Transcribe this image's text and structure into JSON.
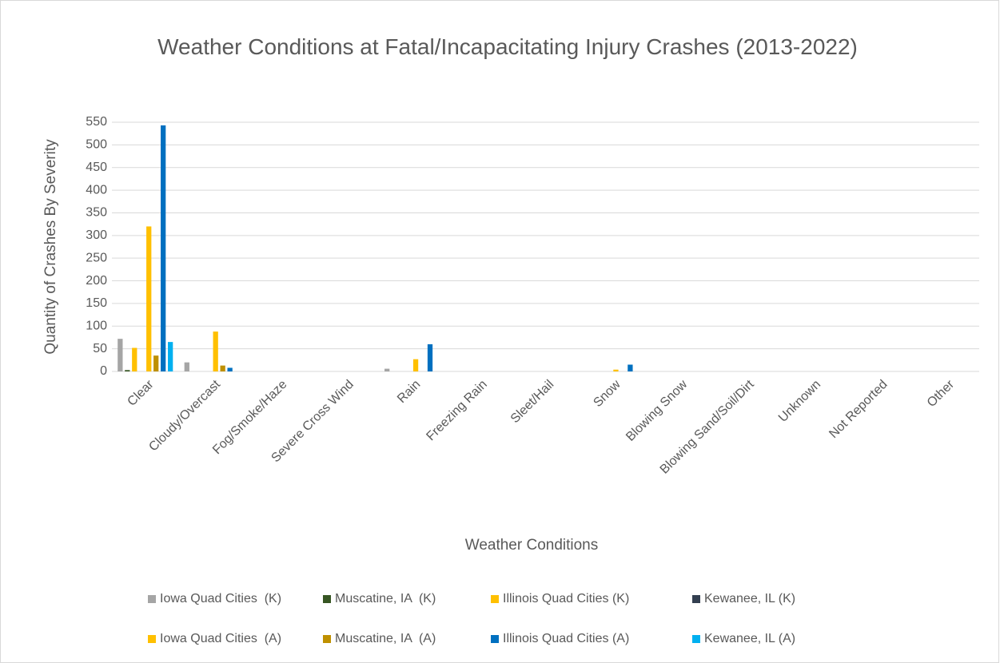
{
  "chart_data": {
    "type": "bar",
    "title": "Weather Conditions at Fatal/Incapacitating Injury Crashes (2013-2022)",
    "x_label": "Weather Conditions",
    "y_label": "Quantity of Crashes By Severity",
    "categories": [
      "Clear",
      "Cloudy/Overcast",
      "Fog/Smoke/Haze",
      "Severe Cross Wind",
      "Rain",
      "Freezing Rain",
      "Sleet/Hail",
      "Snow",
      "Blowing Snow",
      "Blowing Sand/Soil/Dirt",
      "Unknown",
      "Not Reported",
      "Other"
    ],
    "series": [
      {
        "name": "Iowa Quad Cities  (K)",
        "color": "#a5a5a5",
        "values": [
          72,
          20,
          0,
          0,
          6,
          0,
          0,
          0,
          0,
          0,
          0,
          0,
          0
        ]
      },
      {
        "name": "Muscatine, IA  (K)",
        "color": "#375623",
        "values": [
          3,
          0,
          0,
          0,
          0,
          0,
          0,
          0,
          0,
          0,
          0,
          0,
          0
        ]
      },
      {
        "name": "Illinois Quad Cities (K)",
        "color": "#ffc000",
        "values": [
          52,
          0,
          0,
          0,
          0,
          0,
          0,
          0,
          0,
          0,
          0,
          0,
          0
        ]
      },
      {
        "name": "Kewanee, IL (K)",
        "color": "#333f50",
        "values": [
          0,
          0,
          0,
          0,
          0,
          0,
          0,
          0,
          0,
          0,
          0,
          0,
          0
        ]
      },
      {
        "name": "Iowa Quad Cities  (A)",
        "color": "#ffc000",
        "values": [
          320,
          88,
          0,
          0,
          27,
          0,
          0,
          4,
          0,
          0,
          0,
          0,
          0
        ]
      },
      {
        "name": "Muscatine, IA  (A)",
        "color": "#bf9000",
        "values": [
          35,
          13,
          0,
          0,
          0,
          0,
          0,
          0,
          0,
          0,
          0,
          0,
          0
        ]
      },
      {
        "name": "Illinois Quad Cities (A)",
        "color": "#0070c0",
        "values": [
          543,
          8,
          0,
          0,
          60,
          0,
          0,
          15,
          0,
          0,
          0,
          0,
          0
        ]
      },
      {
        "name": "Kewanee, IL (A)",
        "color": "#00b0f0",
        "values": [
          65,
          0,
          0,
          0,
          0,
          0,
          0,
          0,
          0,
          0,
          0,
          0,
          0
        ]
      }
    ],
    "ylim": [
      0,
      550
    ],
    "yticks": [
      0,
      50,
      100,
      150,
      200,
      250,
      300,
      350,
      400,
      450,
      500,
      550
    ],
    "grid": true,
    "legend": "bottom"
  }
}
